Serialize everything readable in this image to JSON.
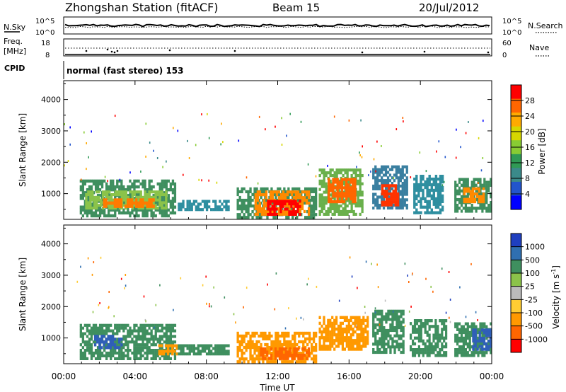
{
  "header": {
    "title": "Zhongshan Station (fitACF)",
    "beam": "Beam 15",
    "date": "20/Jul/2012",
    "cpid_label": "CPID",
    "cpid_text": "normal (fast stereo) 153"
  },
  "noise_panel": {
    "left_label": "N.Sky",
    "right_label": "N.Search",
    "left_ticks": [
      "10^5",
      "10^0"
    ],
    "right_ticks": [
      "10^5",
      "10^0"
    ]
  },
  "freq_panel": {
    "left_label_1": "Freq.",
    "left_label_2": "[MHz]",
    "right_label": "Nave",
    "left_ticks": [
      "18",
      "8"
    ],
    "right_ticks": [
      "60",
      "0"
    ]
  },
  "chart_data": [
    {
      "type": "heatmap",
      "ylabel": "Slant Range [km]",
      "yticks": [
        "4000",
        "3000",
        "2000",
        "1000"
      ],
      "ylim": [
        180,
        4600
      ],
      "xlim": [
        0,
        24
      ],
      "colorbar": {
        "label": "Power [dB]",
        "ticks": [
          "28",
          "24",
          "20",
          "16",
          "12",
          "8",
          "4"
        ],
        "colors": [
          "#ff0000",
          "#ff6600",
          "#ffaa00",
          "#d7d700",
          "#88cc33",
          "#2f9a55",
          "#3b8a8a",
          "#2255cc",
          "#0000ff"
        ]
      },
      "regions": [
        {
          "t0": 0.9,
          "t1": 6.3,
          "r0": 250,
          "r1": 1450,
          "color": "#3f8f5f"
        },
        {
          "t0": 1.2,
          "t1": 5.8,
          "r0": 500,
          "r1": 1100,
          "color": "#8bc34a"
        },
        {
          "t0": 2.2,
          "t1": 5.1,
          "r0": 550,
          "r1": 850,
          "color": "#ff7a00"
        },
        {
          "t0": 6.4,
          "t1": 9.3,
          "r0": 450,
          "r1": 800,
          "color": "#2f8fa0"
        },
        {
          "t0": 9.7,
          "t1": 14.2,
          "r0": 200,
          "r1": 1200,
          "color": "#3f8f5f"
        },
        {
          "t0": 10.7,
          "t1": 13.8,
          "r0": 300,
          "r1": 1100,
          "color": "#ff8a00"
        },
        {
          "t0": 11.4,
          "t1": 13.3,
          "r0": 300,
          "r1": 800,
          "color": "#ff0000"
        },
        {
          "t0": 14.3,
          "t1": 16.8,
          "r0": 300,
          "r1": 1800,
          "color": "#6ab04c"
        },
        {
          "t0": 14.8,
          "t1": 16.4,
          "r0": 700,
          "r1": 1500,
          "color": "#ff6600"
        },
        {
          "t0": 17.3,
          "t1": 19.3,
          "r0": 500,
          "r1": 1900,
          "color": "#3a7fa0"
        },
        {
          "t0": 17.8,
          "t1": 18.8,
          "r0": 600,
          "r1": 1300,
          "color": "#ff3300"
        },
        {
          "t0": 19.6,
          "t1": 21.3,
          "r0": 350,
          "r1": 1600,
          "color": "#2f8fa0"
        },
        {
          "t0": 21.9,
          "t1": 24.0,
          "r0": 400,
          "r1": 1500,
          "color": "#3f8f5f"
        },
        {
          "t0": 22.4,
          "t1": 23.6,
          "r0": 700,
          "r1": 1200,
          "color": "#ff8a00"
        }
      ]
    },
    {
      "type": "heatmap",
      "ylabel": "Slant Range [km]",
      "yticks": [
        "4000",
        "3000",
        "2000",
        "1000"
      ],
      "ylim": [
        180,
        4600
      ],
      "xlim": [
        0,
        24
      ],
      "xticks": [
        "00:00",
        "04:00",
        "08:00",
        "12:00",
        "16:00",
        "20:00",
        "00:00"
      ],
      "xlabel": "Time UT",
      "colorbar": {
        "label": "Velocity [m s",
        "label_sup": "-1",
        "label_end": "]",
        "ticks": [
          "1000",
          "500",
          "100",
          "25",
          "-25",
          "-100",
          "-500",
          "-1000"
        ],
        "colors": [
          "#1f3fbf",
          "#2f6fb0",
          "#3f8f5f",
          "#8bc34a",
          "#bbbbbb",
          "#ffcc33",
          "#ff9900",
          "#ff6600",
          "#ff0000"
        ]
      },
      "regions": [
        {
          "t0": 0.9,
          "t1": 6.3,
          "r0": 300,
          "r1": 1450,
          "color": "#3f8f5f"
        },
        {
          "t0": 1.7,
          "t1": 3.3,
          "r0": 650,
          "r1": 1100,
          "color": "#2f5fb8"
        },
        {
          "t0": 5.3,
          "t1": 6.4,
          "r0": 450,
          "r1": 800,
          "color": "#ff9900"
        },
        {
          "t0": 6.4,
          "t1": 9.3,
          "r0": 450,
          "r1": 800,
          "color": "#3f8f5f"
        },
        {
          "t0": 9.7,
          "t1": 14.2,
          "r0": 200,
          "r1": 1200,
          "color": "#ff9900"
        },
        {
          "t0": 11.0,
          "t1": 13.8,
          "r0": 300,
          "r1": 700,
          "color": "#ff6600"
        },
        {
          "t0": 14.3,
          "t1": 17.1,
          "r0": 600,
          "r1": 1700,
          "color": "#ff9900"
        },
        {
          "t0": 17.3,
          "t1": 19.1,
          "r0": 500,
          "r1": 1900,
          "color": "#3f8f5f"
        },
        {
          "t0": 19.4,
          "t1": 21.5,
          "r0": 400,
          "r1": 1600,
          "color": "#3f8f5f"
        },
        {
          "t0": 21.9,
          "t1": 24.0,
          "r0": 400,
          "r1": 1500,
          "color": "#3f8f5f"
        },
        {
          "t0": 22.9,
          "t1": 24.0,
          "r0": 600,
          "r1": 1300,
          "color": "#2f5fb8"
        }
      ]
    }
  ]
}
